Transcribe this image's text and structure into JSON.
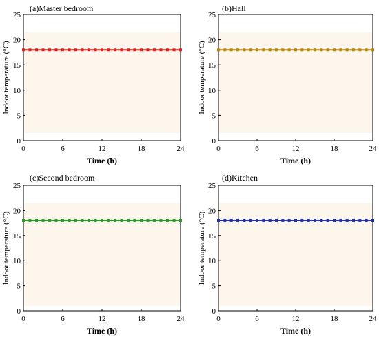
{
  "chart_data": [
    {
      "type": "line",
      "title": "(a)Master bedroom",
      "xlabel": "Time (h)",
      "ylabel": "Indoor temperature (°C)",
      "xlim": [
        0,
        24
      ],
      "ylim": [
        0,
        25
      ],
      "xticks": [
        0,
        6,
        12,
        18,
        24
      ],
      "yticks": [
        0,
        5,
        10,
        15,
        20,
        25
      ],
      "band": [
        1.5,
        21.5
      ],
      "band_color": "#fdf6ec",
      "series": [
        {
          "color": "#e02020",
          "x": [
            0,
            1,
            2,
            3,
            4,
            5,
            6,
            7,
            8,
            9,
            10,
            11,
            12,
            13,
            14,
            15,
            16,
            17,
            18,
            19,
            20,
            21,
            22,
            23,
            24
          ],
          "y": [
            18,
            18,
            18,
            18,
            18,
            18,
            18,
            18,
            18,
            18,
            18,
            18,
            18,
            18,
            18,
            18,
            18,
            18,
            18,
            18,
            18,
            18,
            18,
            18,
            18
          ]
        }
      ]
    },
    {
      "type": "line",
      "title": "(b)Hall",
      "xlabel": "Time (h)",
      "ylabel": "Indoor temperature (°C)",
      "xlim": [
        0,
        24
      ],
      "ylim": [
        0,
        25
      ],
      "xticks": [
        0,
        6,
        12,
        18,
        24
      ],
      "yticks": [
        0,
        5,
        10,
        15,
        20,
        25
      ],
      "band": [
        1.5,
        21.5
      ],
      "band_color": "#fdf6ec",
      "series": [
        {
          "color": "#b8860b",
          "x": [
            0,
            1,
            2,
            3,
            4,
            5,
            6,
            7,
            8,
            9,
            10,
            11,
            12,
            13,
            14,
            15,
            16,
            17,
            18,
            19,
            20,
            21,
            22,
            23,
            24
          ],
          "y": [
            18,
            18,
            18,
            18,
            18,
            18,
            18,
            18,
            18,
            18,
            18,
            18,
            18,
            18,
            18,
            18,
            18,
            18,
            18,
            18,
            18,
            18,
            18,
            18,
            18
          ]
        }
      ]
    },
    {
      "type": "line",
      "title": "(c)Second bedroom",
      "xlabel": "Time (h)",
      "ylabel": "Indoor temperature (°C)",
      "xlim": [
        0,
        24
      ],
      "ylim": [
        0,
        25
      ],
      "xticks": [
        0,
        6,
        12,
        18,
        24
      ],
      "yticks": [
        0,
        5,
        10,
        15,
        20,
        25
      ],
      "band": [
        1.0,
        21.5
      ],
      "band_color": "#fdf6ec",
      "series": [
        {
          "color": "#2a9a2a",
          "x": [
            0,
            1,
            2,
            3,
            4,
            5,
            6,
            7,
            8,
            9,
            10,
            11,
            12,
            13,
            14,
            15,
            16,
            17,
            18,
            19,
            20,
            21,
            22,
            23,
            24
          ],
          "y": [
            18,
            18,
            18,
            18,
            18,
            18,
            18,
            18,
            18,
            18,
            18,
            18,
            18,
            18,
            18,
            18,
            18,
            18,
            18,
            18,
            18,
            18,
            18,
            18,
            18
          ]
        }
      ]
    },
    {
      "type": "line",
      "title": "(d)Kitchen",
      "xlabel": "Time (h)",
      "ylabel": "Indoor temperature (°C)",
      "xlim": [
        0,
        24
      ],
      "ylim": [
        0,
        25
      ],
      "xticks": [
        0,
        6,
        12,
        18,
        24
      ],
      "yticks": [
        0,
        5,
        10,
        15,
        20,
        25
      ],
      "band": [
        1.0,
        21.5
      ],
      "band_color": "#fdf6ec",
      "series": [
        {
          "color": "#2030b0",
          "x": [
            0,
            1,
            2,
            3,
            4,
            5,
            6,
            7,
            8,
            9,
            10,
            11,
            12,
            13,
            14,
            15,
            16,
            17,
            18,
            19,
            20,
            21,
            22,
            23,
            24
          ],
          "y": [
            18,
            18,
            18,
            18,
            18,
            18,
            18,
            18,
            18,
            18,
            18,
            18,
            18,
            18,
            18,
            18,
            18,
            18,
            18,
            18,
            18,
            18,
            18,
            18,
            18
          ]
        }
      ]
    }
  ]
}
